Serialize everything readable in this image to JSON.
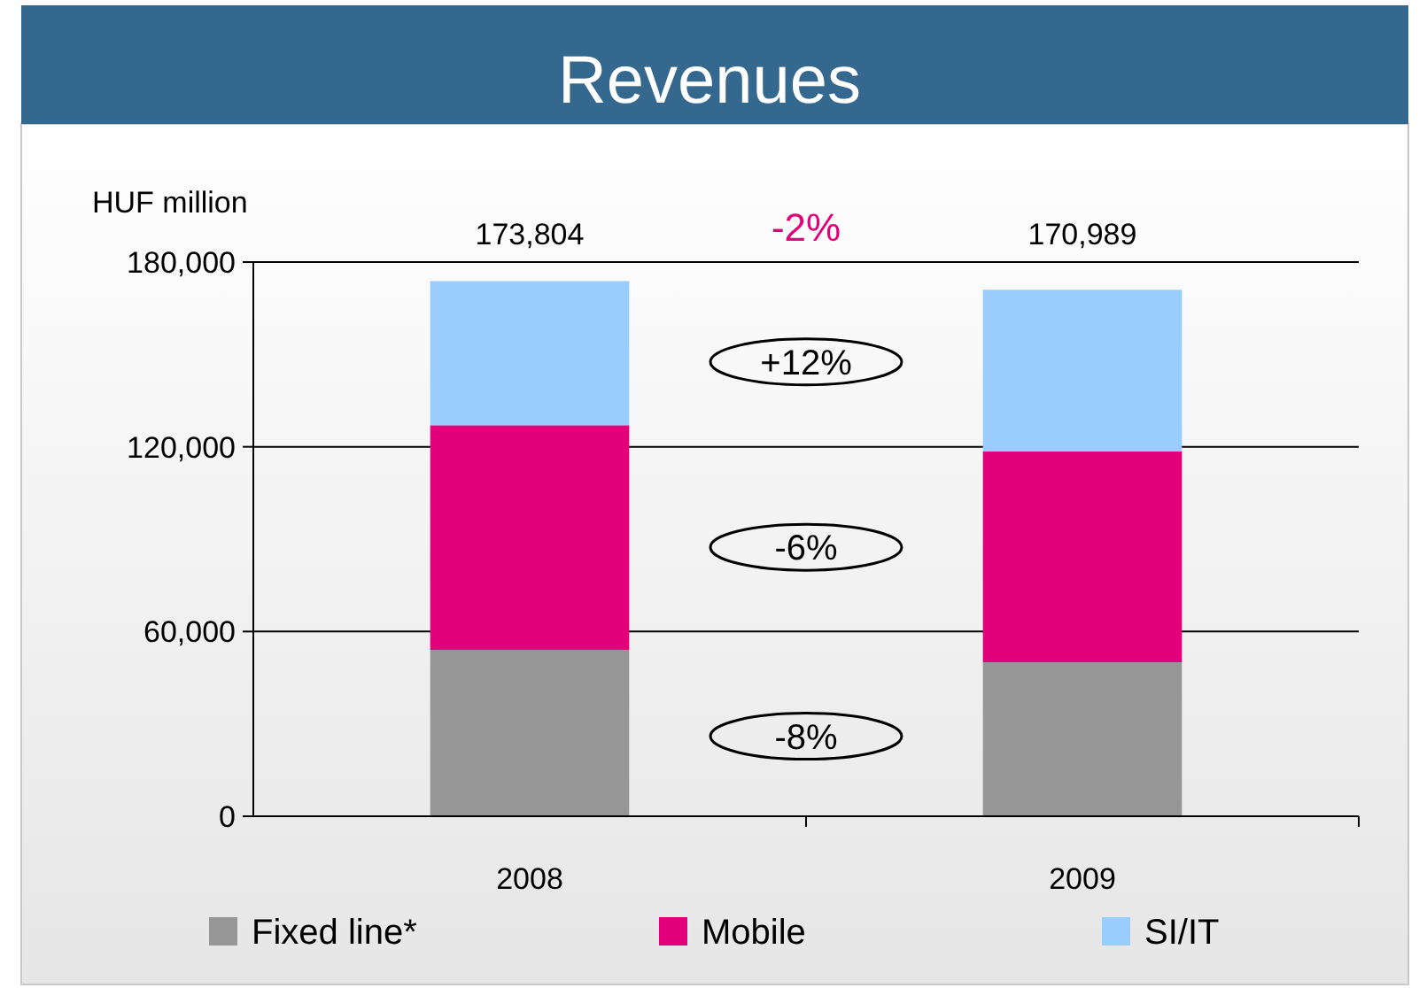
{
  "chart_data": {
    "type": "bar",
    "title": "Revenues",
    "ylabel": "HUF million",
    "categories": [
      "2008",
      "2009"
    ],
    "stacked": true,
    "series": [
      {
        "name": "Fixed line*",
        "color": "#969696",
        "values": [
          54000,
          50000
        ]
      },
      {
        "name": "Mobile",
        "color": "#e2007a",
        "values": [
          73000,
          68500
        ]
      },
      {
        "name": "SI/IT",
        "color": "#99ccff",
        "values": [
          46804,
          52489
        ]
      }
    ],
    "totals": [
      "173,804",
      "170,989"
    ],
    "annotations": [
      "-2%",
      "+12%",
      "-6%",
      "-8%"
    ],
    "ylim": [
      0,
      180000
    ],
    "yticks": [
      {
        "value": 0,
        "label": "0"
      },
      {
        "value": 60000,
        "label": "60,000"
      },
      {
        "value": 120000,
        "label": "120,000"
      },
      {
        "value": 180000,
        "label": "180,000"
      }
    ],
    "grid": "y",
    "legend": "bottom"
  }
}
